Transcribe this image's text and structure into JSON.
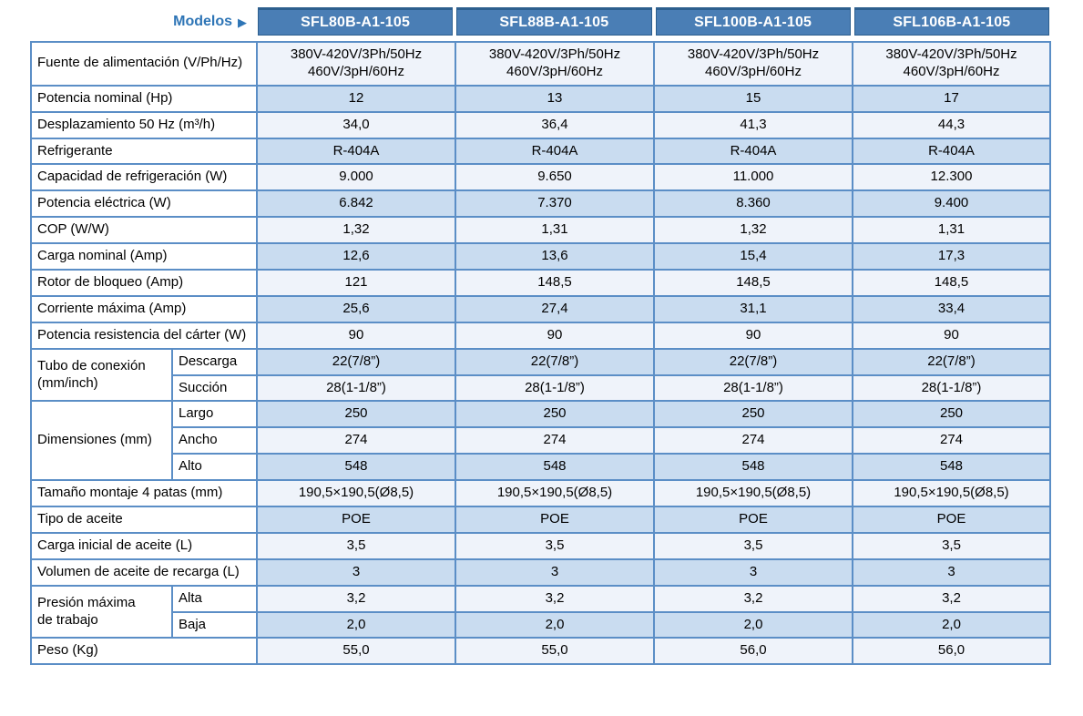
{
  "colors": {
    "header_bg": "#4a7eb5",
    "header_edge": "#2d5f8e",
    "header_text": "#ffffff",
    "models_text": "#2e75b6",
    "grid_border": "#5b8ec6",
    "row_light": "#eff3fa",
    "row_dark": "#c9dcf0"
  },
  "table": {
    "models_label": "Modelos",
    "models_arrow": "▶",
    "models": [
      "SFL80B-A1-105",
      "SFL88B-A1-105",
      "SFL100B-A1-105",
      "SFL106B-A1-105"
    ],
    "rows": [
      {
        "label": "Fuente de alimentación (V/Ph/Hz)",
        "values": [
          "380V-420V/3Ph/50Hz\n460V/3pH/60Hz",
          "380V-420V/3Ph/50Hz\n460V/3pH/60Hz",
          "380V-420V/3Ph/50Hz\n460V/3pH/60Hz",
          "380V-420V/3Ph/50Hz\n460V/3pH/60Hz"
        ]
      },
      {
        "label": "Potencia nominal (Hp)",
        "values": [
          "12",
          "13",
          "15",
          "17"
        ]
      },
      {
        "label": "Desplazamiento 50 Hz (m³/h)",
        "values": [
          "34,0",
          "36,4",
          "41,3",
          "44,3"
        ]
      },
      {
        "label": "Refrigerante",
        "values": [
          "R-404A",
          "R-404A",
          "R-404A",
          "R-404A"
        ]
      },
      {
        "label": "Capacidad de refrigeración (W)",
        "values": [
          "9.000",
          "9.650",
          "11.000",
          "12.300"
        ]
      },
      {
        "label": "Potencia eléctrica (W)",
        "values": [
          "6.842",
          "7.370",
          "8.360",
          "9.400"
        ]
      },
      {
        "label": "COP (W/W)",
        "values": [
          "1,32",
          "1,31",
          "1,32",
          "1,31"
        ]
      },
      {
        "label": "Carga nominal (Amp)",
        "values": [
          "12,6",
          "13,6",
          "15,4",
          "17,3"
        ]
      },
      {
        "label": "Rotor de bloqueo (Amp)",
        "values": [
          "121",
          "148,5",
          "148,5",
          "148,5"
        ]
      },
      {
        "label": "Corriente máxima (Amp)",
        "values": [
          "25,6",
          "27,4",
          "31,1",
          "33,4"
        ]
      },
      {
        "label": "Potencia resistencia del cárter (W)",
        "values": [
          "90",
          "90",
          "90",
          "90"
        ]
      },
      {
        "group": "Tubo de conexión\n(mm/inch)",
        "groupspan": 2,
        "sub": "Descarga",
        "values": [
          "22(7/8”)",
          "22(7/8”)",
          "22(7/8”)",
          "22(7/8”)"
        ]
      },
      {
        "sub": "Succión",
        "values": [
          "28(1-1/8”)",
          "28(1-1/8”)",
          "28(1-1/8”)",
          "28(1-1/8”)"
        ]
      },
      {
        "group": "Dimensiones (mm)",
        "groupspan": 3,
        "sub": "Largo",
        "values": [
          "250",
          "250",
          "250",
          "250"
        ]
      },
      {
        "sub": "Ancho",
        "values": [
          "274",
          "274",
          "274",
          "274"
        ]
      },
      {
        "sub": "Alto",
        "values": [
          "548",
          "548",
          "548",
          "548"
        ]
      },
      {
        "label": "Tamaño montaje 4 patas (mm)",
        "values": [
          "190,5×190,5(Ø8,5)",
          "190,5×190,5(Ø8,5)",
          "190,5×190,5(Ø8,5)",
          "190,5×190,5(Ø8,5)"
        ]
      },
      {
        "label": "Tipo de aceite",
        "values": [
          "POE",
          "POE",
          "POE",
          "POE"
        ]
      },
      {
        "label": "Carga inicial de aceite (L)",
        "values": [
          "3,5",
          "3,5",
          "3,5",
          "3,5"
        ]
      },
      {
        "label": "Volumen de aceite de recarga (L)",
        "values": [
          "3",
          "3",
          "3",
          "3"
        ]
      },
      {
        "group": "Presión máxima\nde trabajo",
        "groupspan": 2,
        "sub": "Alta",
        "values": [
          "3,2",
          "3,2",
          "3,2",
          "3,2"
        ]
      },
      {
        "sub": "Baja",
        "values": [
          "2,0",
          "2,0",
          "2,0",
          "2,0"
        ]
      },
      {
        "label": "Peso (Kg)",
        "values": [
          "55,0",
          "55,0",
          "56,0",
          "56,0"
        ]
      }
    ]
  }
}
